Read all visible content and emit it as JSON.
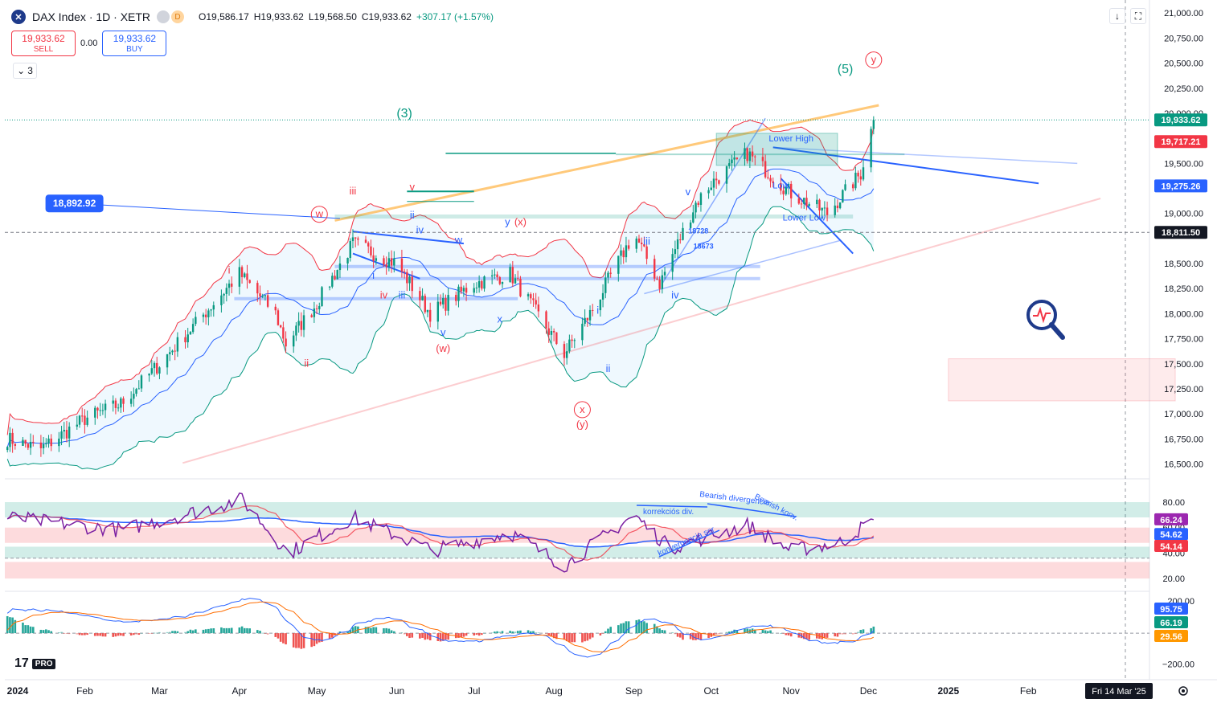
{
  "header": {
    "symbol_icon": "x-circle-icon",
    "title": "DAX Index · 1D · XETR",
    "badge_1": "",
    "badge_2": "D",
    "open": "O19,586.17",
    "high": "H19,933.62",
    "low": "L19,568.50",
    "close": "C19,933.62",
    "change": "+307.17 (+1.57%)"
  },
  "trade": {
    "sell_price": "19,933.62",
    "sell_label": "SELL",
    "spread": "0.00",
    "buy_price": "19,933.62",
    "buy_label": "BUY"
  },
  "indicators_toggle": {
    "icon": "chevron-down-icon",
    "count": "3"
  },
  "toolbar": {
    "download_icon": "↓",
    "fullscreen_icon": "⛶"
  },
  "logo": {
    "text": "17",
    "pro": "PRO"
  },
  "chart_data": [
    {
      "type": "line",
      "subtype": "candlestick-with-bollinger",
      "title": "DAX Index · 1D · XETR",
      "x_tick_labels": [
        "2024",
        "Feb",
        "Mar",
        "Apr",
        "May",
        "Jun",
        "Jul",
        "Aug",
        "Sep",
        "Oct",
        "Nov",
        "Dec",
        "2025",
        "Feb"
      ],
      "x_cursor_label": "Fri 14 Mar '25",
      "y_tick_labels": [
        "21,000.00",
        "20,750.00",
        "20,500.00",
        "20,250.00",
        "20,000.00",
        "19,500.00",
        "19,000.00",
        "18,500.00",
        "18,250.00",
        "18,000.00",
        "17,750.00",
        "17,500.00",
        "17,250.00",
        "17,000.00",
        "16,750.00",
        "16,500.00"
      ],
      "ylim": [
        16400,
        21050
      ],
      "price_labels": [
        {
          "value": 19933.62,
          "text": "19,933.62",
          "color": "#089981"
        },
        {
          "value": 19717.21,
          "text": "19,717.21",
          "color": "#f23645"
        },
        {
          "value": 19275.26,
          "text": "19,275.26",
          "color": "#2962ff"
        },
        {
          "value": 18811.5,
          "text": "18,811.50",
          "color": "#131722"
        }
      ],
      "series": [
        {
          "name": "",
          "x": [
            "2024-01-02",
            "2024-01-15",
            "2024-02-01",
            "2024-02-15",
            "2024-03-01",
            "2024-03-15",
            "2024-04-01",
            "2024-04-15",
            "2024-04-19",
            "2024-05-01",
            "2024-05-15",
            "2024-06-01",
            "2024-06-14",
            "2024-07-01",
            "2024-07-15",
            "2024-08-05",
            "2024-08-15",
            "2024-09-01",
            "2024-09-11",
            "2024-09-25",
            "2024-10-01",
            "2024-10-15",
            "2024-11-01",
            "2024-11-15",
            "2024-11-28",
            "2024-12-03"
          ],
          "y": [
            16750,
            16650,
            16950,
            17100,
            17500,
            17900,
            18400,
            18000,
            17700,
            18100,
            18700,
            18500,
            18000,
            18300,
            18400,
            17600,
            18000,
            18800,
            18300,
            19100,
            19300,
            19600,
            19200,
            19000,
            19400,
            19933.62
          ]
        }
      ],
      "annotations": [
        {
          "text": "18,892.92",
          "kind": "callout",
          "x": "2024-01-28",
          "y": 19100
        },
        {
          "text": "(3)",
          "kind": "wave",
          "color": "#089981",
          "x": "2024-06-04",
          "y": 19960
        },
        {
          "text": "(5)",
          "kind": "wave",
          "color": "#089981",
          "x": "2024-11-22",
          "y": 20400
        },
        {
          "text": "y",
          "kind": "wave-circle",
          "color": "#f23645",
          "x": "2024-12-03",
          "y": 20500
        },
        {
          "text": "w",
          "kind": "wave-circle",
          "color": "#f23645",
          "x": "2024-05-02",
          "y": 18960
        },
        {
          "text": "iii",
          "kind": "wave",
          "color": "#f23645",
          "x": "2024-05-15",
          "y": 19190
        },
        {
          "text": "v",
          "kind": "wave",
          "color": "#f23645",
          "x": "2024-06-07",
          "y": 19230
        },
        {
          "text": "ii",
          "kind": "wave",
          "color": "#2962ff",
          "x": "2024-06-07",
          "y": 18950
        },
        {
          "text": "iv",
          "kind": "wave",
          "color": "#2962ff",
          "x": "2024-06-10",
          "y": 18800
        },
        {
          "text": "w",
          "kind": "wave",
          "color": "#2962ff",
          "x": "2024-06-25",
          "y": 18700
        },
        {
          "text": "y",
          "kind": "wave",
          "color": "#2962ff",
          "x": "2024-07-14",
          "y": 18880
        },
        {
          "text": "(x)",
          "kind": "wave",
          "color": "#f23645",
          "x": "2024-07-19",
          "y": 18880
        },
        {
          "text": "i",
          "kind": "wave",
          "color": "#f23645",
          "x": "2024-03-28",
          "y": 18400
        },
        {
          "text": "ii",
          "kind": "wave",
          "color": "#f23645",
          "x": "2024-04-27",
          "y": 17470
        },
        {
          "text": "i",
          "kind": "wave",
          "color": "#2962ff",
          "x": "2024-05-23",
          "y": 18350
        },
        {
          "text": "iv",
          "kind": "wave",
          "color": "#f23645",
          "x": "2024-05-27",
          "y": 18150
        },
        {
          "text": "iii",
          "kind": "wave",
          "color": "#2962ff",
          "x": "2024-06-03",
          "y": 18150
        },
        {
          "text": "v",
          "kind": "wave",
          "color": "#2962ff",
          "x": "2024-06-19",
          "y": 17780
        },
        {
          "text": "x",
          "kind": "wave",
          "color": "#2962ff",
          "x": "2024-07-11",
          "y": 17910
        },
        {
          "text": "(w)",
          "kind": "wave",
          "color": "#f23645",
          "x": "2024-06-19",
          "y": 17620
        },
        {
          "text": "x",
          "kind": "wave-circle",
          "color": "#f23645",
          "x": "2024-08-12",
          "y": 17010
        },
        {
          "text": "(y)",
          "kind": "wave",
          "color": "#f23645",
          "x": "2024-08-12",
          "y": 16860
        },
        {
          "text": "i",
          "kind": "wave",
          "color": "#2962ff",
          "x": "2024-08-18",
          "y": 18000
        },
        {
          "text": "ii",
          "kind": "wave",
          "color": "#2962ff",
          "x": "2024-08-22",
          "y": 17420
        },
        {
          "text": "iii",
          "kind": "wave",
          "color": "#2962ff",
          "x": "2024-09-06",
          "y": 18690
        },
        {
          "text": "iv",
          "kind": "wave",
          "color": "#2962ff",
          "x": "2024-09-17",
          "y": 18150
        },
        {
          "text": "v",
          "kind": "wave",
          "color": "#2962ff",
          "x": "2024-09-22",
          "y": 19180
        },
        {
          "text": "18728",
          "kind": "level",
          "color": "#2962ff",
          "x": "2024-09-26",
          "y": 18800
        },
        {
          "text": "18673",
          "kind": "level",
          "color": "#2962ff",
          "x": "2024-09-28",
          "y": 18650
        },
        {
          "text": "Lower High",
          "kind": "label",
          "color": "#2962ff",
          "x": "2024-11-01",
          "y": 19720
        },
        {
          "text": "Low",
          "kind": "label",
          "color": "#2962ff",
          "x": "2024-10-28",
          "y": 19250
        },
        {
          "text": "Lower Low",
          "kind": "label",
          "color": "#2962ff",
          "x": "2024-11-06",
          "y": 18930
        }
      ]
    },
    {
      "type": "line",
      "subtype": "rsi",
      "y_tick_labels": [
        "80.00",
        "60.00",
        "40.00",
        "20.00"
      ],
      "ylim": [
        15,
        92
      ],
      "value_labels": [
        {
          "value": 66.24,
          "text": "66.24",
          "color": "#9c27b0"
        },
        {
          "value": 54.62,
          "text": "54.62",
          "color": "#2962ff"
        },
        {
          "value": 54.14,
          "text": "54.14",
          "color": "#f23645"
        }
      ],
      "series": [
        {
          "name": "",
          "x": [
            "2024-01-02",
            "2024-02-15",
            "2024-03-20",
            "2024-04-02",
            "2024-04-20",
            "2024-05-15",
            "2024-06-15",
            "2024-07-15",
            "2024-08-05",
            "2024-09-01",
            "2024-09-15",
            "2024-10-15",
            "2024-11-01",
            "2024-11-20",
            "2024-12-03"
          ],
          "y": [
            68,
            58,
            75,
            82,
            40,
            68,
            42,
            56,
            30,
            70,
            44,
            62,
            42,
            48,
            66.24
          ]
        }
      ],
      "annotations": [
        {
          "text": "Bearish divergencia",
          "color": "#2962ff"
        },
        {
          "text": "Bearish konv.",
          "color": "#2962ff"
        },
        {
          "text": "korrekciós div.",
          "color": "#2962ff"
        },
        {
          "text": "konvergencia sor",
          "color": "#2962ff"
        }
      ]
    },
    {
      "type": "bar",
      "subtype": "macd",
      "y_tick_labels": [
        "200.00",
        "−200.00"
      ],
      "ylim": [
        -260,
        230
      ],
      "value_labels": [
        {
          "value": 95.75,
          "text": "95.75",
          "color": "#2962ff"
        },
        {
          "value": 66.19,
          "text": "66.19",
          "color": "#089981"
        },
        {
          "value": 29.56,
          "text": "29.56",
          "color": "#ff9800"
        }
      ]
    }
  ]
}
